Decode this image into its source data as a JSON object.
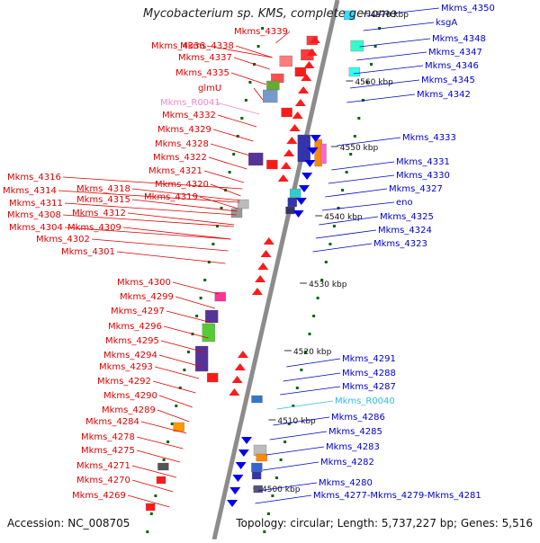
{
  "title": "Mycobacterium sp. KMS, complete genome",
  "footer": {
    "accession": "Accession: NC_008705",
    "summary": "Topology: circular; Length: 5,737,227 bp; Genes: 5,516"
  },
  "colors": {
    "left_label": "#e00000",
    "right_label": "#0000cc",
    "rna_left": "#ee88cc",
    "rna_right": "#33bbdd",
    "backbone": "#888888",
    "tick": "#006600"
  },
  "kbp_ticks": [
    {
      "label": "4570 kbp"
    },
    {
      "label": "4560 kbp"
    },
    {
      "label": "4550 kbp"
    },
    {
      "label": "4540 kbp"
    },
    {
      "label": "4530 kbp"
    },
    {
      "label": "4520 kbp"
    },
    {
      "label": "4510 kbp"
    },
    {
      "label": "4500 kbp"
    }
  ],
  "left_genes": [
    {
      "label": "Mkms_4339",
      "kind": "gene"
    },
    {
      "label": "Mkms_4336",
      "kind": "gene"
    },
    {
      "label": "Mkms_4338",
      "kind": "gene"
    },
    {
      "label": "Mkms_4337",
      "kind": "gene"
    },
    {
      "label": "Mkms_4335",
      "kind": "gene"
    },
    {
      "label": "glmU",
      "kind": "gene"
    },
    {
      "label": "Mkms_R0041",
      "kind": "rna"
    },
    {
      "label": "Mkms_4332",
      "kind": "gene"
    },
    {
      "label": "Mkms_4329",
      "kind": "gene"
    },
    {
      "label": "Mkms_4328",
      "kind": "gene"
    },
    {
      "label": "Mkms_4322",
      "kind": "gene"
    },
    {
      "label": "Mkms_4321",
      "kind": "gene"
    },
    {
      "label": "Mkms_4320",
      "kind": "gene"
    },
    {
      "label": "Mkms_4316",
      "kind": "gene"
    },
    {
      "label": "Mkms_4318",
      "kind": "gene"
    },
    {
      "label": "Mkms_4319",
      "kind": "gene"
    },
    {
      "label": "Mkms_4314",
      "kind": "gene"
    },
    {
      "label": "Mkms_4315",
      "kind": "gene"
    },
    {
      "label": "Mkms_4311",
      "kind": "gene"
    },
    {
      "label": "Mkms_4312",
      "kind": "gene"
    },
    {
      "label": "Mkms_4308",
      "kind": "gene"
    },
    {
      "label": "Mkms_4304",
      "kind": "gene"
    },
    {
      "label": "Mkms_4309",
      "kind": "gene"
    },
    {
      "label": "Mkms_4302",
      "kind": "gene"
    },
    {
      "label": "Mkms_4301",
      "kind": "gene"
    },
    {
      "label": "Mkms_4300",
      "kind": "gene"
    },
    {
      "label": "Mkms_4299",
      "kind": "gene"
    },
    {
      "label": "Mkms_4297",
      "kind": "gene"
    },
    {
      "label": "Mkms_4296",
      "kind": "gene"
    },
    {
      "label": "Mkms_4295",
      "kind": "gene"
    },
    {
      "label": "Mkms_4294",
      "kind": "gene"
    },
    {
      "label": "Mkms_4293",
      "kind": "gene"
    },
    {
      "label": "Mkms_4292",
      "kind": "gene"
    },
    {
      "label": "Mkms_4290",
      "kind": "gene"
    },
    {
      "label": "Mkms_4289",
      "kind": "gene"
    },
    {
      "label": "Mkms_4284",
      "kind": "gene"
    },
    {
      "label": "Mkms_4278",
      "kind": "gene"
    },
    {
      "label": "Mkms_4275",
      "kind": "gene"
    },
    {
      "label": "Mkms_4271",
      "kind": "gene"
    },
    {
      "label": "Mkms_4270",
      "kind": "gene"
    },
    {
      "label": "Mkms_4269",
      "kind": "gene"
    }
  ],
  "right_genes": [
    {
      "label": "Mkms_4350",
      "kind": "gene"
    },
    {
      "label": "ksgA",
      "kind": "gene"
    },
    {
      "label": "Mkms_4348",
      "kind": "gene"
    },
    {
      "label": "Mkms_4347",
      "kind": "gene"
    },
    {
      "label": "Mkms_4346",
      "kind": "gene"
    },
    {
      "label": "Mkms_4345",
      "kind": "gene"
    },
    {
      "label": "Mkms_4342",
      "kind": "gene"
    },
    {
      "label": "Mkms_4333",
      "kind": "gene"
    },
    {
      "label": "Mkms_4331",
      "kind": "gene"
    },
    {
      "label": "Mkms_4330",
      "kind": "gene"
    },
    {
      "label": "Mkms_4327",
      "kind": "gene"
    },
    {
      "label": "eno",
      "kind": "gene"
    },
    {
      "label": "Mkms_4325",
      "kind": "gene"
    },
    {
      "label": "Mkms_4324",
      "kind": "gene"
    },
    {
      "label": "Mkms_4323",
      "kind": "gene"
    },
    {
      "label": "Mkms_4291",
      "kind": "gene"
    },
    {
      "label": "Mkms_4288",
      "kind": "gene"
    },
    {
      "label": "Mkms_4287",
      "kind": "gene"
    },
    {
      "label": "Mkms_R0040",
      "kind": "rna"
    },
    {
      "label": "Mkms_4286",
      "kind": "gene"
    },
    {
      "label": "Mkms_4285",
      "kind": "gene"
    },
    {
      "label": "Mkms_4283",
      "kind": "gene"
    },
    {
      "label": "Mkms_4282",
      "kind": "gene"
    },
    {
      "label": "Mkms_4280",
      "kind": "gene"
    },
    {
      "label": "Mkms_4277-Mkms_4279-Mkms_4281",
      "kind": "gene"
    }
  ]
}
